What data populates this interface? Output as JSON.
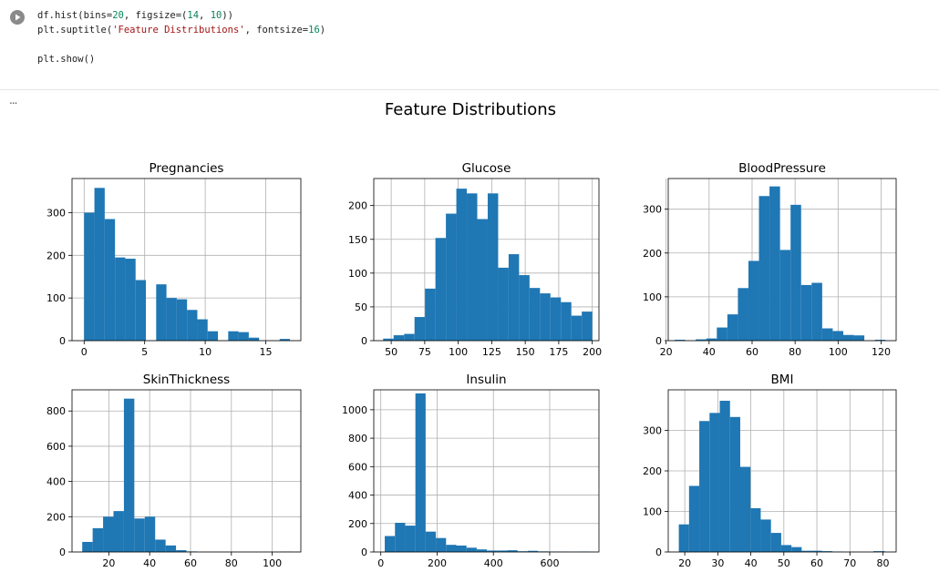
{
  "code_cell": {
    "lines": [
      "df.hist(bins=20, figsize=(14, 10))",
      "plt.suptitle('Feature Distributions', fontsize=16)",
      "",
      "plt.show()"
    ]
  },
  "output": {
    "menu_label": "..."
  },
  "colors": {
    "bar": "#1f77b4",
    "grid": "#b0b0b0",
    "axis": "#000000"
  },
  "chart_data": {
    "type": "bar",
    "title": "Feature Distributions",
    "grid": true,
    "subplots": [
      {
        "title": "Pregnancies",
        "xlim": [
          -1,
          17.9
        ],
        "ylim": [
          0,
          380
        ],
        "xticks": [
          0,
          5,
          10,
          15
        ],
        "yticks": [
          0,
          100,
          200,
          300
        ],
        "bin_edges": [
          0,
          0.85,
          1.7,
          2.55,
          3.4,
          4.25,
          5.1,
          5.95,
          6.8,
          7.65,
          8.5,
          9.35,
          10.2,
          11.05,
          11.9,
          12.75,
          13.6,
          14.45,
          15.3,
          16.15,
          17
        ],
        "values": [
          300,
          358,
          285,
          195,
          192,
          142,
          0,
          132,
          100,
          97,
          72,
          50,
          22,
          0,
          22,
          20,
          7,
          0,
          0,
          4
        ]
      },
      {
        "title": "Glucose",
        "xlim": [
          37,
          205
        ],
        "ylim": [
          0,
          240
        ],
        "xticks": [
          50,
          75,
          100,
          125,
          150,
          175,
          200
        ],
        "yticks": [
          0,
          50,
          100,
          150,
          200
        ],
        "bin_edges": [
          44,
          51.8,
          59.6,
          67.4,
          75.2,
          83,
          90.8,
          98.6,
          106.4,
          114.2,
          122,
          129.8,
          137.6,
          145.4,
          153.2,
          161,
          168.8,
          176.6,
          184.4,
          192.2,
          200
        ],
        "values": [
          3,
          8,
          10,
          35,
          77,
          152,
          188,
          225,
          218,
          180,
          218,
          108,
          128,
          97,
          78,
          70,
          64,
          57,
          37,
          43
        ]
      },
      {
        "title": "BloodPressure",
        "xlim": [
          21,
          127
        ],
        "ylim": [
          0,
          370
        ],
        "xticks": [
          20,
          40,
          60,
          80,
          100,
          120
        ],
        "yticks": [
          0,
          100,
          200,
          300
        ],
        "bin_edges": [
          24,
          28.9,
          33.8,
          38.7,
          43.6,
          48.5,
          53.4,
          58.3,
          63.2,
          68.1,
          73,
          77.9,
          82.8,
          87.7,
          92.6,
          97.5,
          102.4,
          107.3,
          112.2,
          117.1,
          122
        ],
        "values": [
          2,
          0,
          3,
          5,
          30,
          60,
          120,
          182,
          330,
          352,
          207,
          310,
          127,
          132,
          28,
          22,
          13,
          12,
          0,
          2
        ]
      },
      {
        "title": "SkinThickness",
        "xlim": [
          2,
          114
        ],
        "ylim": [
          0,
          920
        ],
        "xticks": [
          20,
          40,
          60,
          80,
          100
        ],
        "yticks": [
          0,
          200,
          400,
          600,
          800
        ],
        "bin_edges": [
          7,
          12.1,
          17.2,
          22.3,
          27.4,
          32.5,
          37.6,
          42.7,
          47.8,
          52.9,
          58,
          63.1,
          68.2,
          73.3,
          78.4,
          83.5,
          88.6,
          93.7,
          98.8,
          103.9,
          110
        ],
        "values": [
          57,
          135,
          200,
          232,
          870,
          190,
          200,
          70,
          37,
          10,
          3,
          0,
          0,
          0,
          0,
          0,
          0,
          0,
          0,
          2
        ]
      },
      {
        "title": "Insulin",
        "xlim": [
          -25,
          775
        ],
        "ylim": [
          0,
          1140
        ],
        "xticks": [
          0,
          200,
          400,
          600
        ],
        "yticks": [
          0,
          200,
          400,
          600,
          800,
          1000
        ],
        "bin_edges": [
          14,
          50.3,
          86.6,
          122.9,
          159.2,
          195.5,
          231.8,
          268.1,
          304.4,
          340.7,
          377,
          413.3,
          449.6,
          485.9,
          522.2,
          558.5,
          594.8,
          631.1,
          667.4,
          703.7,
          744
        ],
        "values": [
          112,
          205,
          185,
          1115,
          143,
          98,
          50,
          45,
          30,
          18,
          10,
          10,
          12,
          5,
          8,
          4,
          2,
          2,
          1,
          3
        ]
      },
      {
        "title": "BMI",
        "xlim": [
          15,
          84
        ],
        "ylim": [
          0,
          400
        ],
        "xticks": [
          20,
          30,
          40,
          50,
          60,
          70,
          80
        ],
        "yticks": [
          0,
          100,
          200,
          300
        ],
        "bin_edges": [
          18.2,
          21.3,
          24.4,
          27.5,
          30.6,
          33.7,
          36.8,
          39.9,
          43,
          46.1,
          49.2,
          52.3,
          55.4,
          58.5,
          61.6,
          64.7,
          67.8,
          70.9,
          74,
          77.1,
          80.6
        ],
        "values": [
          68,
          163,
          323,
          343,
          373,
          333,
          210,
          108,
          80,
          47,
          17,
          12,
          3,
          3,
          2,
          1,
          0,
          0,
          0,
          2
        ]
      }
    ]
  }
}
